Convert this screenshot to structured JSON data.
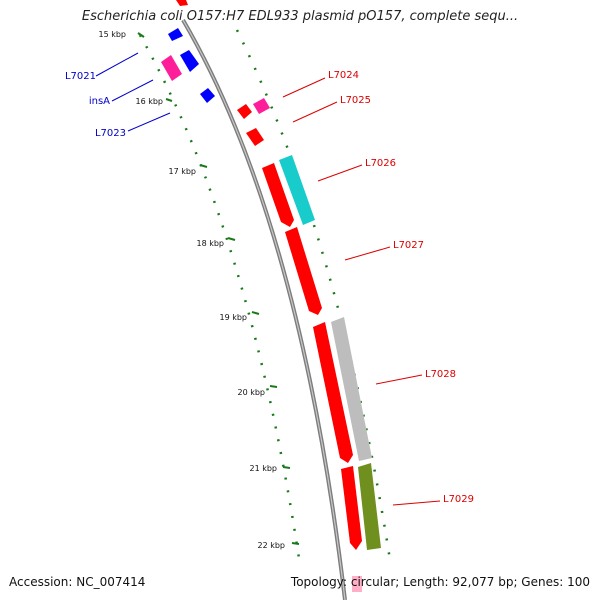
{
  "title": "Escherichia coli O157:H7 EDL933 plasmid pO157, complete sequ...",
  "footer": {
    "accession": "Accession: NC_007414",
    "summary": "Topology: circular; Length: 92,077 bp; Genes: 100"
  },
  "ticks": [
    "15 kbp",
    "16 kbp",
    "17 kbp",
    "18 kbp",
    "19 kbp",
    "20 kbp",
    "21 kbp",
    "22 kbp"
  ],
  "genes_left": [
    {
      "name": "L7021",
      "color": "#0000cc"
    },
    {
      "name": "insA",
      "color": "#0000cc"
    },
    {
      "name": "L7023",
      "color": "#0000cc"
    }
  ],
  "genes_right": [
    {
      "name": "L7024",
      "color": "#dd0000"
    },
    {
      "name": "L7025",
      "color": "#dd0000"
    },
    {
      "name": "L7026",
      "color": "#dd0000"
    },
    {
      "name": "L7027",
      "color": "#dd0000"
    },
    {
      "name": "L7028",
      "color": "#dd0000"
    },
    {
      "name": "L7029",
      "color": "#dd0000"
    }
  ],
  "colors": {
    "backbone": "#808080",
    "tick": "#1a7a1a",
    "cds": "#ff0000",
    "mobile": "#ff1e9a",
    "insertion": "#0000ff",
    "cyan": "#19cccc",
    "grey": "#bdbdbd",
    "olive": "#6f8f1f"
  }
}
